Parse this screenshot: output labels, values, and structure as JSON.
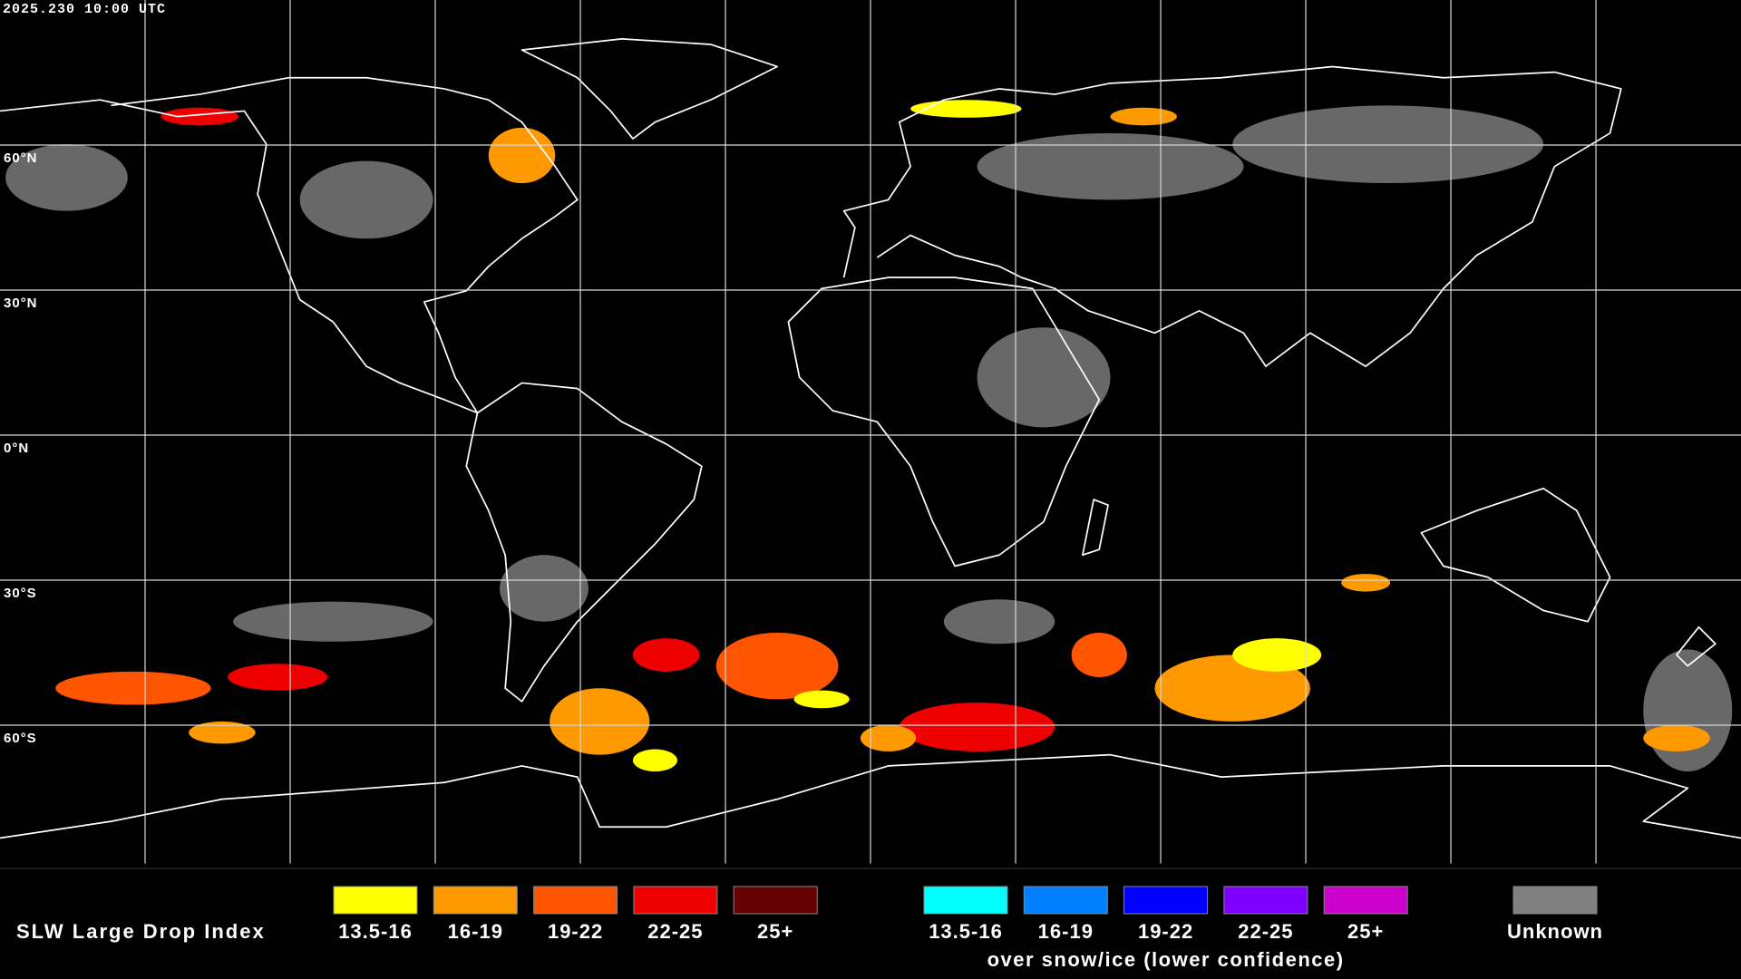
{
  "header": {
    "timestamp": "2025.230 10:00 UTC"
  },
  "grid": {
    "lat_labels": [
      "60°N",
      "30°N",
      "0°N",
      "30°S",
      "60°S"
    ]
  },
  "legend": {
    "title": "SLW Large Drop Index",
    "groups": [
      {
        "entries": [
          {
            "label": "13.5-16",
            "color": "#ffff00"
          },
          {
            "label": "16-19",
            "color": "#ff9900"
          },
          {
            "label": "19-22",
            "color": "#ff5500"
          },
          {
            "label": "22-25",
            "color": "#ee0000"
          },
          {
            "label": "25+",
            "color": "#660000"
          }
        ]
      },
      {
        "entries": [
          {
            "label": "13.5-16",
            "color": "#00ffff"
          },
          {
            "label": "16-19",
            "color": "#0080ff"
          },
          {
            "label": "19-22",
            "color": "#0000ff"
          },
          {
            "label": "22-25",
            "color": "#7f00ff"
          },
          {
            "label": "25+",
            "color": "#cc00cc"
          }
        ],
        "caption": "over snow/ice (lower confidence)"
      }
    ],
    "unknown": {
      "label": "Unknown",
      "color": "#808080"
    }
  }
}
